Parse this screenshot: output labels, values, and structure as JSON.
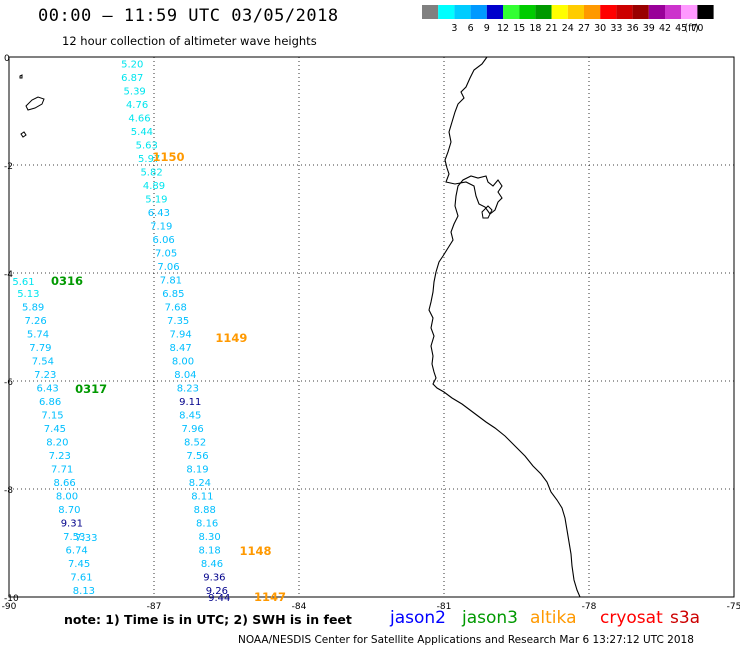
{
  "header": {
    "title": "00:00 – 11:59 UTC 03/05/2018",
    "subtitle": "12 hour collection of altimeter wave heights"
  },
  "colorbar": {
    "unit": "(ft)",
    "bins": [
      {
        "label": "",
        "color": "#808080"
      },
      {
        "label": "3",
        "color": "#00ffff"
      },
      {
        "label": "6",
        "color": "#00ccff"
      },
      {
        "label": "9",
        "color": "#0099ff"
      },
      {
        "label": "12",
        "color": "#0000cc"
      },
      {
        "label": "15",
        "color": "#33ff33"
      },
      {
        "label": "18",
        "color": "#00cc00"
      },
      {
        "label": "21",
        "color": "#009900"
      },
      {
        "label": "24",
        "color": "#ffff00"
      },
      {
        "label": "27",
        "color": "#ffcc00"
      },
      {
        "label": "30",
        "color": "#ff9900"
      },
      {
        "label": "33",
        "color": "#ff0000"
      },
      {
        "label": "36",
        "color": "#cc0000"
      },
      {
        "label": "39",
        "color": "#990000"
      },
      {
        "label": "42",
        "color": "#990099"
      },
      {
        "label": "45",
        "color": "#cc33cc"
      },
      {
        "label": "70",
        "color": "#ff99ff"
      },
      {
        "label": "",
        "color": "#000000"
      }
    ]
  },
  "axes": {
    "lon_ticks": [
      "-90",
      "-87",
      "-84",
      "-81",
      "-78",
      "-75"
    ],
    "lat_ticks": [
      "0",
      "-2",
      "-4",
      "-6",
      "-8",
      "-10"
    ],
    "lon_range": [
      -90,
      -75
    ],
    "lat_range": [
      -10,
      0
    ]
  },
  "colors": {
    "light_blue": "#00bfff",
    "cyan": "#00e5ee",
    "dark_blue": "#00008b",
    "jason2": "#0000ff",
    "jason3": "#009900",
    "altika": "#ff9900",
    "cryosat": "#ff0000",
    "s3a": "#cc0000",
    "grid": "#000000",
    "coast": "#000000"
  },
  "tracks": [
    {
      "satellite": "altika",
      "time_label": "1150",
      "time_lon": -86.7,
      "time_lat": -1.85,
      "values": [
        {
          "lon": -87.45,
          "lat": -0.12,
          "text": "5.20",
          "c": "cyan"
        },
        {
          "lon": -87.45,
          "lat": -0.37,
          "text": "6.87",
          "c": "cyan"
        },
        {
          "lon": -87.4,
          "lat": -0.62,
          "text": "5.39",
          "c": "cyan"
        },
        {
          "lon": -87.35,
          "lat": -0.87,
          "text": "4.76",
          "c": "cyan"
        },
        {
          "lon": -87.3,
          "lat": -1.12,
          "text": "4.66",
          "c": "cyan"
        },
        {
          "lon": -87.25,
          "lat": -1.37,
          "text": "5.44",
          "c": "cyan"
        },
        {
          "lon": -87.15,
          "lat": -1.62,
          "text": "5.63",
          "c": "cyan"
        },
        {
          "lon": -87.1,
          "lat": -1.87,
          "text": "5.97",
          "c": "cyan"
        },
        {
          "lon": -87.05,
          "lat": -2.12,
          "text": "5.82",
          "c": "cyan"
        },
        {
          "lon": -87.0,
          "lat": -2.37,
          "text": "4.89",
          "c": "cyan"
        },
        {
          "lon": -86.95,
          "lat": -2.62,
          "text": "5.19",
          "c": "cyan"
        },
        {
          "lon": -86.9,
          "lat": -2.87,
          "text": "6.43",
          "c": "light_blue"
        },
        {
          "lon": -86.85,
          "lat": -3.12,
          "text": "7.19",
          "c": "light_blue"
        },
        {
          "lon": -86.8,
          "lat": -3.37,
          "text": "6.06",
          "c": "light_blue"
        },
        {
          "lon": -86.75,
          "lat": -3.62,
          "text": "7.05",
          "c": "light_blue"
        },
        {
          "lon": -86.7,
          "lat": -3.87,
          "text": "7.06",
          "c": "light_blue"
        },
        {
          "lon": -86.65,
          "lat": -4.12,
          "text": "7.81",
          "c": "light_blue"
        },
        {
          "lon": -86.6,
          "lat": -4.37,
          "text": "6.85",
          "c": "light_blue"
        },
        {
          "lon": -86.55,
          "lat": -4.62,
          "text": "7.68",
          "c": "light_blue"
        }
      ]
    },
    {
      "satellite": "altika",
      "time_label": "1149",
      "time_lon": -85.4,
      "time_lat": -5.2,
      "values": [
        {
          "lon": -86.5,
          "lat": -4.87,
          "text": "7.35",
          "c": "light_blue"
        },
        {
          "lon": -86.45,
          "lat": -5.12,
          "text": "7.94",
          "c": "light_blue"
        },
        {
          "lon": -86.45,
          "lat": -5.37,
          "text": "8.47",
          "c": "light_blue"
        },
        {
          "lon": -86.4,
          "lat": -5.62,
          "text": "8.00",
          "c": "light_blue"
        },
        {
          "lon": -86.35,
          "lat": -5.87,
          "text": "8.04",
          "c": "light_blue"
        },
        {
          "lon": -86.3,
          "lat": -6.12,
          "text": "8.23",
          "c": "light_blue"
        },
        {
          "lon": -86.25,
          "lat": -6.37,
          "text": "9.11",
          "c": "dark_blue"
        },
        {
          "lon": -86.25,
          "lat": -6.62,
          "text": "8.45",
          "c": "light_blue"
        },
        {
          "lon": -86.2,
          "lat": -6.87,
          "text": "7.96",
          "c": "light_blue"
        },
        {
          "lon": -86.15,
          "lat": -7.12,
          "text": "8.52",
          "c": "light_blue"
        },
        {
          "lon": -86.1,
          "lat": -7.37,
          "text": "7.56",
          "c": "light_blue"
        },
        {
          "lon": -86.1,
          "lat": -7.62,
          "text": "8.19",
          "c": "light_blue"
        },
        {
          "lon": -86.05,
          "lat": -7.87,
          "text": "8.24",
          "c": "light_blue"
        },
        {
          "lon": -86.0,
          "lat": -8.12,
          "text": "8.11",
          "c": "light_blue"
        },
        {
          "lon": -85.95,
          "lat": -8.37,
          "text": "8.88",
          "c": "light_blue"
        },
        {
          "lon": -85.9,
          "lat": -8.62,
          "text": "8.16",
          "c": "light_blue"
        }
      ]
    },
    {
      "satellite": "altika",
      "time_label": "1148",
      "time_lon": -84.9,
      "time_lat": -9.15,
      "values": [
        {
          "lon": -85.85,
          "lat": -8.87,
          "text": "8.30",
          "c": "light_blue"
        },
        {
          "lon": -85.85,
          "lat": -9.12,
          "text": "8.18",
          "c": "light_blue"
        },
        {
          "lon": -85.8,
          "lat": -9.37,
          "text": "8.46",
          "c": "light_blue"
        },
        {
          "lon": -85.75,
          "lat": -9.62,
          "text": "9.36",
          "c": "dark_blue"
        },
        {
          "lon": -85.7,
          "lat": -9.87,
          "text": "9.26",
          "c": "dark_blue"
        }
      ]
    },
    {
      "satellite": "altika",
      "time_label": "1147",
      "time_lon": -84.6,
      "time_lat": -10.0,
      "values": [
        {
          "lon": -85.65,
          "lat": -10.0,
          "text": "9.44",
          "c": "dark_blue"
        }
      ]
    },
    {
      "satellite": "jason3",
      "time_label": "0316",
      "time_lon": -88.8,
      "time_lat": -4.15,
      "values": [
        {
          "lon": -89.7,
          "lat": -4.15,
          "text": "5.61",
          "c": "cyan"
        },
        {
          "lon": -89.6,
          "lat": -4.37,
          "text": "5.13",
          "c": "cyan"
        },
        {
          "lon": -89.5,
          "lat": -4.62,
          "text": "5.89",
          "c": "light_blue"
        },
        {
          "lon": -89.45,
          "lat": -4.87,
          "text": "7.26",
          "c": "light_blue"
        },
        {
          "lon": -89.4,
          "lat": -5.12,
          "text": "5.74",
          "c": "light_blue"
        },
        {
          "lon": -89.35,
          "lat": -5.37,
          "text": "7.79",
          "c": "light_blue"
        },
        {
          "lon": -89.3,
          "lat": -5.62,
          "text": "7.54",
          "c": "light_blue"
        },
        {
          "lon": -89.25,
          "lat": -5.87,
          "text": "7.23",
          "c": "light_blue"
        },
        {
          "lon": -89.2,
          "lat": -6.12,
          "text": "6.43",
          "c": "light_blue"
        },
        {
          "lon": -89.15,
          "lat": -6.37,
          "text": "6.86",
          "c": "light_blue"
        },
        {
          "lon": -89.1,
          "lat": -6.62,
          "text": "7.15",
          "c": "light_blue"
        }
      ]
    },
    {
      "satellite": "jason3",
      "time_label": "0317",
      "time_lon": -88.3,
      "time_lat": -6.15,
      "values": [
        {
          "lon": -89.05,
          "lat": -6.87,
          "text": "7.45",
          "c": "light_blue"
        },
        {
          "lon": -89.0,
          "lat": -7.12,
          "text": "8.20",
          "c": "light_blue"
        },
        {
          "lon": -88.95,
          "lat": -7.37,
          "text": "7.23",
          "c": "light_blue"
        },
        {
          "lon": -88.9,
          "lat": -7.62,
          "text": "7.71",
          "c": "light_blue"
        },
        {
          "lon": -88.85,
          "lat": -7.87,
          "text": "8.66",
          "c": "light_blue"
        },
        {
          "lon": -88.8,
          "lat": -8.12,
          "text": "8.00",
          "c": "light_blue"
        },
        {
          "lon": -88.75,
          "lat": -8.37,
          "text": "8.70",
          "c": "light_blue"
        },
        {
          "lon": -88.7,
          "lat": -8.62,
          "text": "9.31",
          "c": "dark_blue"
        },
        {
          "lon": -88.65,
          "lat": -8.87,
          "text": "7.53",
          "c": "light_blue"
        },
        {
          "lon": -88.6,
          "lat": -9.12,
          "text": "6.74",
          "c": "light_blue"
        },
        {
          "lon": -88.55,
          "lat": -9.37,
          "text": "7.45",
          "c": "light_blue"
        },
        {
          "lon": -88.5,
          "lat": -9.62,
          "text": "7.61",
          "c": "light_blue"
        },
        {
          "lon": -88.45,
          "lat": -9.87,
          "text": "8.13",
          "c": "light_blue"
        }
      ]
    }
  ],
  "labels_fixed": [
    {
      "text": "7.33",
      "lon": -88.4,
      "lat": -10.0,
      "c": "light_blue"
    }
  ],
  "notes": {
    "note": "note:  1) Time is in UTC;  2) SWH is in feet",
    "credit": "NOAA/NESDIS Center for Satellite Applications and Research    Mar  6 13:27:12 UTC 2018"
  },
  "legend": [
    {
      "name": "jason2",
      "c": "jason2"
    },
    {
      "name": "jason3",
      "c": "jason3"
    },
    {
      "name": "altika",
      "c": "altika"
    },
    {
      "name": "cryosat",
      "c": "cryosat"
    },
    {
      "name": "s3a",
      "c": "s3a"
    }
  ]
}
